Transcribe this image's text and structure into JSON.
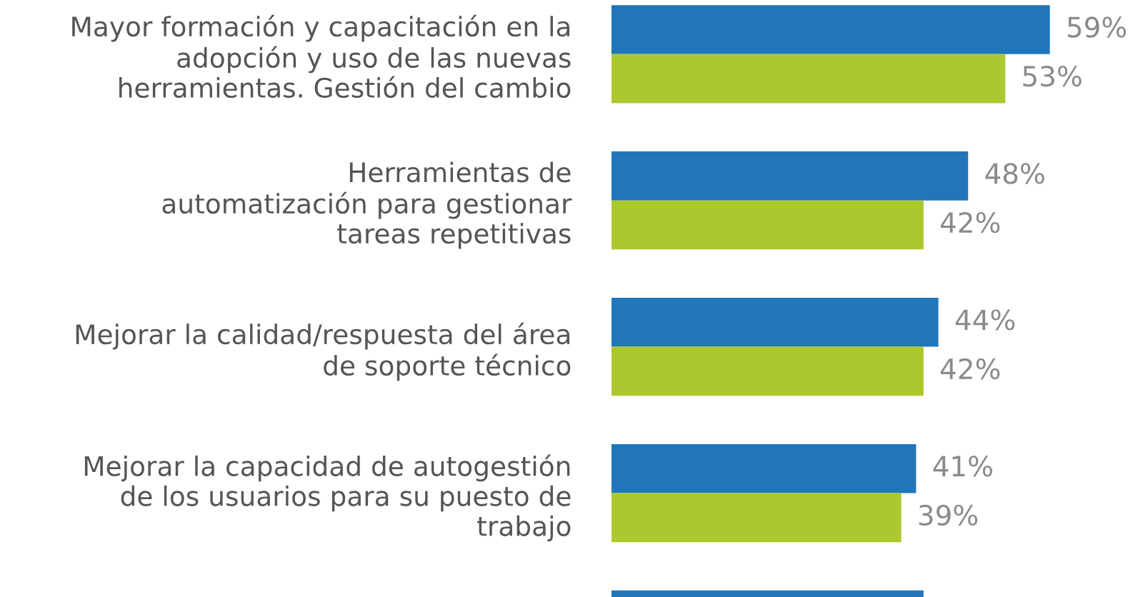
{
  "chart_data": {
    "type": "bar",
    "orientation": "horizontal",
    "tick_labels": "y",
    "categories": [
      "Mayor formación y capacitación en la\nadopción y uso de las nuevas\nherramientas. Gestión del cambio",
      "Herramientas de\nautomatización para gestionar\ntareas repetitivas",
      "Mejorar la calidad/respuesta del área\nde soporte técnico",
      "Mejorar la capacidad de autogestión\nde los usuarios para su puesto de\ntrabajo",
      null
    ],
    "series": [
      {
        "color": "#2176ba",
        "values": [
          59,
          48,
          44,
          41,
          42
        ],
        "value_labels": [
          "59%",
          "48%",
          "44%",
          "41%",
          null
        ]
      },
      {
        "color": "#abc92f",
        "values": [
          53,
          42,
          42,
          39,
          null
        ],
        "value_labels": [
          "53%",
          "42%",
          "42%",
          "39%",
          null
        ]
      }
    ]
  }
}
